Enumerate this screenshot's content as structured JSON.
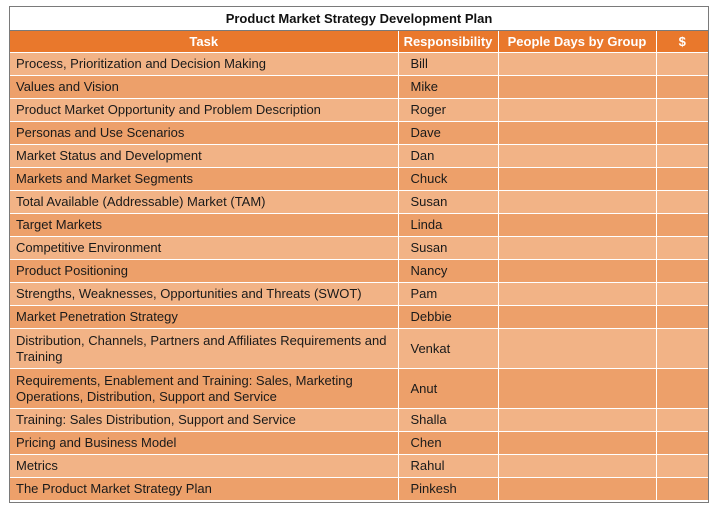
{
  "title": "Product Market Strategy Development Plan",
  "columns": {
    "task": "Task",
    "responsibility": "Responsibility",
    "people_days": "People Days by Group",
    "cost": "$"
  },
  "rows": [
    {
      "task": "Process, Prioritization and Decision Making",
      "responsibility": "Bill",
      "people_days": "",
      "cost": ""
    },
    {
      "task": "Values and Vision",
      "responsibility": "Mike",
      "people_days": "",
      "cost": ""
    },
    {
      "task": "Product Market Opportunity and Problem Description",
      "responsibility": "Roger",
      "people_days": "",
      "cost": ""
    },
    {
      "task": "Personas and Use Scenarios",
      "responsibility": "Dave",
      "people_days": "",
      "cost": ""
    },
    {
      "task": "Market Status and Development",
      "responsibility": "Dan",
      "people_days": "",
      "cost": ""
    },
    {
      "task": "Markets and Market Segments",
      "responsibility": "Chuck",
      "people_days": "",
      "cost": ""
    },
    {
      "task": "Total Available (Addressable) Market (TAM)",
      "responsibility": "Susan",
      "people_days": "",
      "cost": ""
    },
    {
      "task": "Target Markets",
      "responsibility": "Linda",
      "people_days": "",
      "cost": ""
    },
    {
      "task": "Competitive Environment",
      "responsibility": "Susan",
      "people_days": "",
      "cost": ""
    },
    {
      "task": "Product Positioning",
      "responsibility": "Nancy",
      "people_days": "",
      "cost": ""
    },
    {
      "task": "Strengths, Weaknesses, Opportunities and Threats (SWOT)",
      "responsibility": "Pam",
      "people_days": "",
      "cost": ""
    },
    {
      "task": "Market Penetration Strategy",
      "responsibility": "Debbie",
      "people_days": "",
      "cost": ""
    },
    {
      "task": "Distribution, Channels, Partners and Affiliates Requirements and Training",
      "responsibility": "Venkat",
      "people_days": "",
      "cost": ""
    },
    {
      "task": "Requirements, Enablement and Training: Sales, Marketing Operations, Distribution, Support and Service",
      "responsibility": "Anut",
      "people_days": "",
      "cost": ""
    },
    {
      "task": "Training: Sales Distribution, Support and Service",
      "responsibility": "Shalla",
      "people_days": "",
      "cost": ""
    },
    {
      "task": "Pricing and Business Model",
      "responsibility": "Chen",
      "people_days": "",
      "cost": ""
    },
    {
      "task": "Metrics",
      "responsibility": "Rahul",
      "people_days": "",
      "cost": ""
    },
    {
      "task": "The Product Market Strategy Plan",
      "responsibility": "Pinkesh",
      "people_days": "",
      "cost": ""
    }
  ]
}
